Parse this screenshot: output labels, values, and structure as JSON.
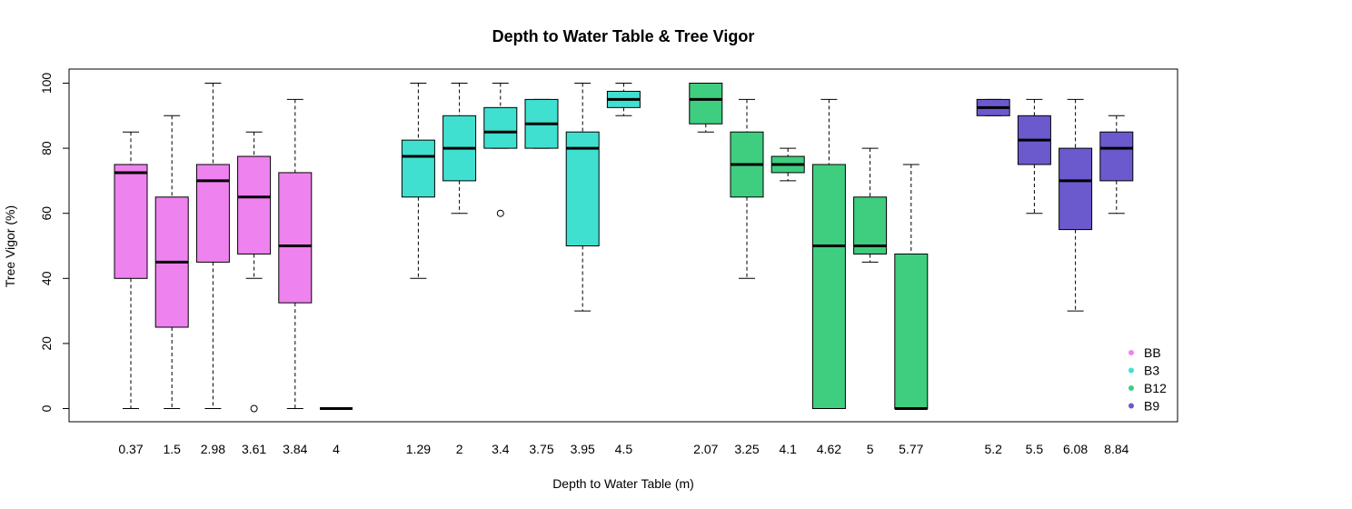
{
  "chart_data": {
    "type": "boxplot",
    "title": "Depth to Water Table & Tree Vigor",
    "xlabel": "Depth to Water Table (m)",
    "ylabel": "Tree Vigor (%)",
    "ylim": [
      0,
      100
    ],
    "yticks": [
      0,
      20,
      40,
      60,
      80,
      100
    ],
    "grid": false,
    "legend_position": "bottom-right",
    "groups": [
      {
        "name": "BB",
        "color": "#EE82EE",
        "boxes": [
          {
            "label": "0.37",
            "min": 0,
            "q1": 40,
            "median": 72.5,
            "q3": 75,
            "max": 85,
            "outliers": []
          },
          {
            "label": "1.5",
            "min": 0,
            "q1": 25,
            "median": 45,
            "q3": 65,
            "max": 90,
            "outliers": []
          },
          {
            "label": "2.98",
            "min": 0,
            "q1": 45,
            "median": 70,
            "q3": 75,
            "max": 100,
            "outliers": []
          },
          {
            "label": "3.61",
            "min": 40,
            "q1": 47.5,
            "median": 65,
            "q3": 77.5,
            "max": 85,
            "outliers": [
              0
            ]
          },
          {
            "label": "3.84",
            "min": 0,
            "q1": 32.5,
            "median": 50,
            "q3": 72.5,
            "max": 95,
            "outliers": []
          },
          {
            "label": "4",
            "min": 0,
            "q1": 0,
            "median": 0,
            "q3": 0,
            "max": 0,
            "outliers": []
          }
        ]
      },
      {
        "name": "B3",
        "color": "#40E0D0",
        "boxes": [
          {
            "label": "1.29",
            "min": 40,
            "q1": 65,
            "median": 77.5,
            "q3": 82.5,
            "max": 100,
            "outliers": []
          },
          {
            "label": "2",
            "min": 60,
            "q1": 70,
            "median": 80,
            "q3": 90,
            "max": 100,
            "outliers": []
          },
          {
            "label": "3.4",
            "min": 80,
            "q1": 80,
            "median": 85,
            "q3": 92.5,
            "max": 100,
            "outliers": [
              60
            ]
          },
          {
            "label": "3.75",
            "min": 80,
            "q1": 80,
            "median": 87.5,
            "q3": 95,
            "max": 95,
            "outliers": []
          },
          {
            "label": "3.95",
            "min": 30,
            "q1": 50,
            "median": 80,
            "q3": 85,
            "max": 100,
            "outliers": []
          },
          {
            "label": "4.5",
            "min": 90,
            "q1": 92.5,
            "median": 95,
            "q3": 97.5,
            "max": 100,
            "outliers": []
          }
        ]
      },
      {
        "name": "B12",
        "color": "#3FCD7F",
        "boxes": [
          {
            "label": "2.07",
            "min": 85,
            "q1": 87.5,
            "median": 95,
            "q3": 100,
            "max": 100,
            "outliers": []
          },
          {
            "label": "3.25",
            "min": 40,
            "q1": 65,
            "median": 75,
            "q3": 85,
            "max": 95,
            "outliers": []
          },
          {
            "label": "4.1",
            "min": 70,
            "q1": 72.5,
            "median": 75,
            "q3": 77.5,
            "max": 80,
            "outliers": []
          },
          {
            "label": "4.62",
            "min": 0,
            "q1": 0,
            "median": 50,
            "q3": 75,
            "max": 95,
            "outliers": []
          },
          {
            "label": "5",
            "min": 45,
            "q1": 47.5,
            "median": 50,
            "q3": 65,
            "max": 80,
            "outliers": []
          },
          {
            "label": "5.77",
            "min": 0,
            "q1": 0,
            "median": 0,
            "q3": 47.5,
            "max": 75,
            "outliers": []
          }
        ]
      },
      {
        "name": "B9",
        "color": "#6A5ACD",
        "boxes": [
          {
            "label": "5.2",
            "min": 90,
            "q1": 90,
            "median": 92.5,
            "q3": 95,
            "max": 95,
            "outliers": []
          },
          {
            "label": "5.5",
            "min": 60,
            "q1": 75,
            "median": 82.5,
            "q3": 90,
            "max": 95,
            "outliers": []
          },
          {
            "label": "6.08",
            "min": 30,
            "q1": 55,
            "median": 70,
            "q3": 80,
            "max": 95,
            "outliers": []
          },
          {
            "label": "8.84",
            "min": 60,
            "q1": 70,
            "median": 80,
            "q3": 85,
            "max": 90,
            "outliers": []
          }
        ]
      }
    ]
  }
}
